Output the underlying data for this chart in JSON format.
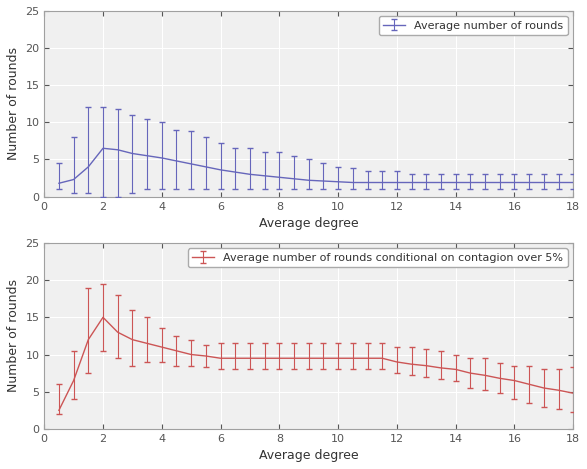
{
  "top": {
    "x": [
      0.5,
      1.0,
      1.5,
      2.0,
      2.5,
      3.0,
      3.5,
      4.0,
      4.5,
      5.0,
      5.5,
      6.0,
      6.5,
      7.0,
      7.5,
      8.0,
      8.5,
      9.0,
      9.5,
      10.0,
      10.5,
      11.0,
      11.5,
      12.0,
      12.5,
      13.0,
      13.5,
      14.0,
      14.5,
      15.0,
      15.5,
      16.0,
      16.5,
      17.0,
      17.5,
      18.0
    ],
    "y": [
      1.8,
      2.3,
      4.0,
      6.5,
      6.3,
      5.8,
      5.5,
      5.2,
      4.8,
      4.4,
      4.0,
      3.6,
      3.3,
      3.0,
      2.8,
      2.6,
      2.4,
      2.2,
      2.1,
      2.0,
      1.9,
      1.9,
      1.9,
      1.9,
      1.9,
      1.9,
      1.9,
      1.9,
      1.9,
      1.9,
      1.9,
      1.9,
      1.9,
      1.9,
      1.9,
      1.9
    ],
    "yerr_low": [
      0.8,
      1.8,
      3.5,
      6.5,
      6.3,
      5.3,
      4.5,
      4.2,
      3.8,
      3.4,
      3.0,
      2.6,
      2.3,
      2.0,
      1.8,
      1.6,
      1.4,
      1.2,
      1.1,
      1.0,
      0.9,
      0.9,
      0.9,
      0.9,
      0.9,
      0.9,
      0.9,
      0.9,
      0.9,
      0.9,
      0.9,
      0.9,
      0.9,
      0.9,
      0.9,
      0.9
    ],
    "yerr_high": [
      2.7,
      5.7,
      8.0,
      5.5,
      5.5,
      5.2,
      5.0,
      4.8,
      4.2,
      4.4,
      4.0,
      3.6,
      3.2,
      3.6,
      3.2,
      3.4,
      3.1,
      2.8,
      2.4,
      2.0,
      2.0,
      1.6,
      1.6,
      1.6,
      1.1,
      1.1,
      1.1,
      1.1,
      1.1,
      1.1,
      1.1,
      1.1,
      1.1,
      1.1,
      1.1,
      1.1
    ],
    "color": "#6666bb",
    "legend": "Average number of rounds",
    "xlabel": "Average degree",
    "ylabel": "Number of rounds",
    "ylim": [
      0,
      25
    ],
    "xlim": [
      0,
      18
    ]
  },
  "bottom": {
    "x": [
      0.5,
      1.0,
      1.5,
      2.0,
      2.5,
      3.0,
      3.5,
      4.0,
      4.5,
      5.0,
      5.5,
      6.0,
      6.5,
      7.0,
      7.5,
      8.0,
      8.5,
      9.0,
      9.5,
      10.0,
      10.5,
      11.0,
      11.5,
      12.0,
      12.5,
      13.0,
      13.5,
      14.0,
      14.5,
      15.0,
      15.5,
      16.0,
      16.5,
      17.0,
      17.5,
      18.0
    ],
    "y": [
      2.5,
      6.5,
      12.0,
      15.0,
      13.0,
      12.0,
      11.5,
      11.0,
      10.5,
      10.0,
      9.8,
      9.5,
      9.5,
      9.5,
      9.5,
      9.5,
      9.5,
      9.5,
      9.5,
      9.5,
      9.5,
      9.5,
      9.5,
      9.0,
      8.7,
      8.5,
      8.2,
      8.0,
      7.5,
      7.2,
      6.8,
      6.5,
      6.0,
      5.5,
      5.2,
      4.8
    ],
    "yerr_low": [
      0.5,
      2.5,
      4.5,
      4.5,
      3.5,
      3.5,
      2.5,
      2.0,
      2.0,
      1.5,
      1.5,
      1.5,
      1.5,
      1.5,
      1.5,
      1.5,
      1.5,
      1.5,
      1.5,
      1.5,
      1.5,
      1.5,
      1.5,
      1.5,
      1.5,
      1.5,
      1.5,
      1.5,
      2.0,
      2.0,
      2.0,
      2.5,
      2.5,
      2.5,
      2.5,
      2.5
    ],
    "yerr_high": [
      3.5,
      4.0,
      7.0,
      4.5,
      5.0,
      4.0,
      3.5,
      2.5,
      2.0,
      2.0,
      1.5,
      2.0,
      2.0,
      2.0,
      2.0,
      2.0,
      2.0,
      2.0,
      2.0,
      2.0,
      2.0,
      2.0,
      2.0,
      2.0,
      2.3,
      2.3,
      2.3,
      2.0,
      2.0,
      2.3,
      2.0,
      2.0,
      2.5,
      2.5,
      2.8,
      3.5
    ],
    "color": "#cc5555",
    "legend": "Average number of rounds conditional on contagion over 5%",
    "xlabel": "Average degree",
    "ylabel": "Number of rounds",
    "ylim": [
      0,
      25
    ],
    "xlim": [
      0,
      18
    ]
  },
  "figsize": [
    5.87,
    4.69
  ],
  "dpi": 100,
  "bg_color": "#f0f0f0",
  "grid_color": "#ffffff"
}
